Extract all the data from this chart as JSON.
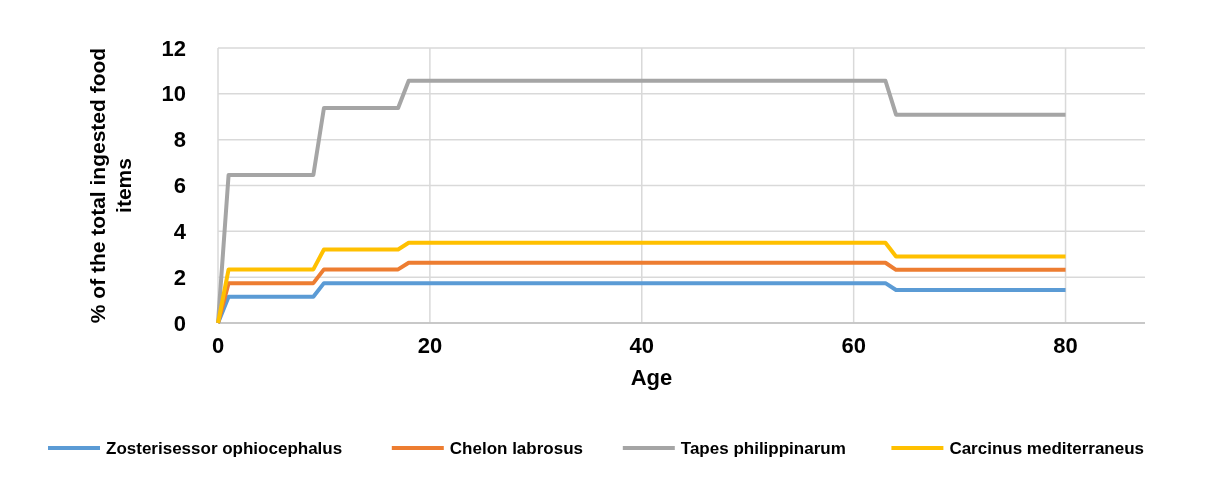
{
  "chart_data": {
    "type": "line",
    "xlabel": "Age",
    "ylabel": "% of the total ingested food items",
    "x": [
      0,
      1,
      9,
      10,
      17,
      18,
      63,
      64,
      80
    ],
    "series": [
      {
        "name": "Zosterisessor ophiocephalus",
        "color": "#5b9bd5",
        "values": [
          0,
          1.15,
          1.15,
          1.74,
          1.74,
          1.74,
          1.74,
          1.44,
          1.44
        ]
      },
      {
        "name": "Chelon labrosus",
        "color": "#ed7d31",
        "values": [
          0,
          1.74,
          1.74,
          2.34,
          2.34,
          2.63,
          2.63,
          2.32,
          2.32
        ]
      },
      {
        "name": "Tapes philippinarum",
        "color": "#a5a5a5",
        "values": [
          0,
          6.46,
          6.46,
          9.38,
          9.38,
          10.57,
          10.57,
          9.09,
          9.09
        ]
      },
      {
        "name": "Carcinus mediterraneus",
        "color": "#ffc000",
        "values": [
          0,
          2.34,
          2.34,
          3.21,
          3.21,
          3.5,
          3.5,
          2.9,
          2.9
        ]
      }
    ],
    "xlim": [
      0,
      87.5
    ],
    "xticks": [
      0,
      20,
      40,
      60,
      80
    ],
    "ylim": [
      0,
      12
    ],
    "yticks": [
      0,
      2,
      4,
      6,
      8,
      10,
      12
    ],
    "grid": true,
    "legend": "bottom",
    "marker": "none",
    "line_style": "solid"
  }
}
